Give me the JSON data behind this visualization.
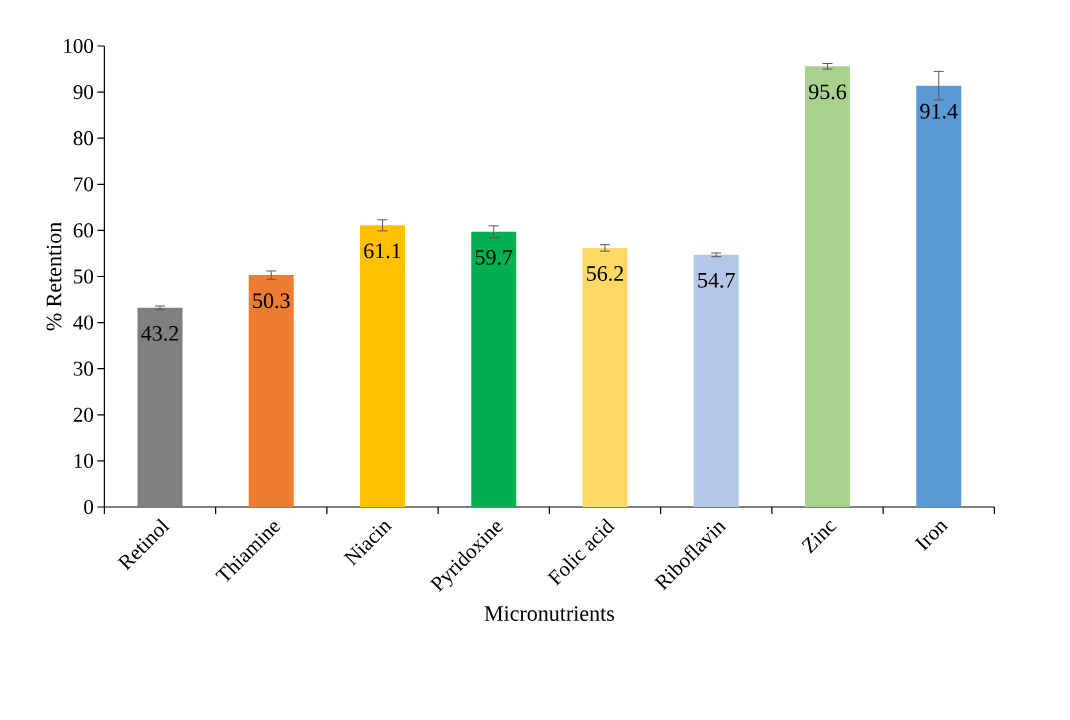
{
  "chart_data": {
    "type": "bar",
    "xlabel": "Micronutrients",
    "ylabel": "% Retention",
    "categories": [
      "Retinol",
      "Thiamine",
      "Niacin",
      "Pyridoxine",
      "Folic acid",
      "Riboflavin",
      "Zinc",
      "Iron"
    ],
    "values": [
      43.2,
      50.3,
      61.1,
      59.7,
      56.2,
      54.7,
      95.6,
      91.4
    ],
    "errors": [
      0.4,
      0.9,
      1.2,
      1.3,
      0.7,
      0.4,
      0.6,
      3.1
    ],
    "colors": [
      "#7f7f7f",
      "#ed7d31",
      "#ffc000",
      "#00b050",
      "#ffd966",
      "#b4c7e7",
      "#a9d18e",
      "#5b9bd5"
    ],
    "ylim": [
      0,
      100
    ],
    "yticks": [
      0,
      10,
      20,
      30,
      40,
      50,
      60,
      70,
      80,
      90,
      100
    ],
    "data_labels": true
  }
}
